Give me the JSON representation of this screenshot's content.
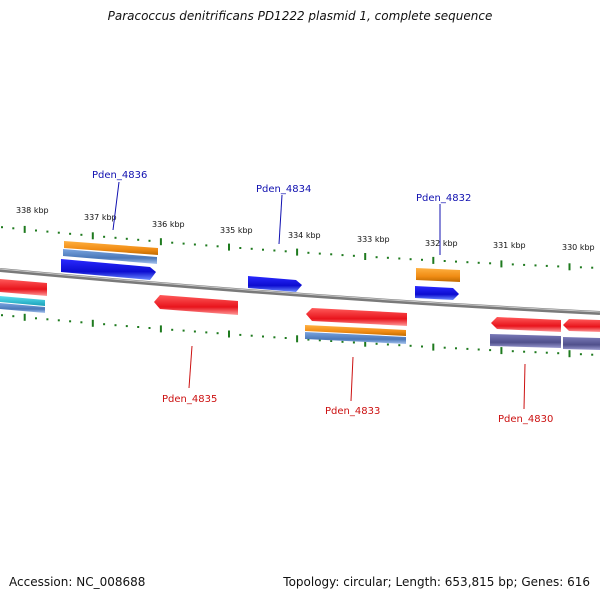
{
  "title": "Paracoccus denitrificans PD1222 plasmid 1, complete sequence",
  "footer": {
    "accession": "Accession: NC_008688",
    "stats": "Topology: circular; Length: 653,815 bp; Genes: 616"
  },
  "colors": {
    "backbone": "#8a8a8a",
    "tick": "#1e7a1e",
    "forward_label": "#1010b0",
    "reverse_label": "#cc1111",
    "gene_red": "#e8141c",
    "gene_blue": "#1414d8",
    "gene_orange": "#f08c14",
    "gene_steel": "#4a78b8",
    "gene_cyan": "#20b4c8",
    "gene_purple": "#50508c"
  },
  "scale_ticks": [
    "338 kbp",
    "337 kbp",
    "336 kbp",
    "335 kbp",
    "334 kbp",
    "333 kbp",
    "332 kbp",
    "331 kbp",
    "330 kbp"
  ],
  "gene_labels": [
    "Pden_4836",
    "Pden_4834",
    "Pden_4832",
    "Pden_4835",
    "Pden_4833",
    "Pden_4830"
  ]
}
